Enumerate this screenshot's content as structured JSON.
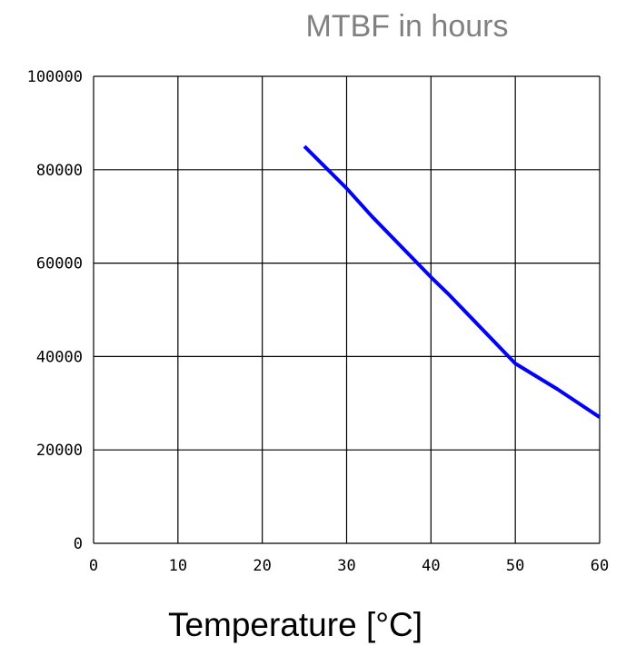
{
  "chart_data": {
    "type": "line",
    "title": "MTBF in hours",
    "xlabel": "Temperature [°C]",
    "ylabel": "",
    "xlim": [
      0,
      60
    ],
    "ylim": [
      0,
      100000
    ],
    "x_ticks": [
      "0",
      "10",
      "20",
      "30",
      "40",
      "50",
      "60"
    ],
    "y_ticks": [
      "0",
      "20000",
      "40000",
      "60000",
      "80000",
      "100000"
    ],
    "grid": true,
    "legend": "none",
    "series": [
      {
        "color": "#0000ff",
        "x": [
          25,
          30,
          33,
          40,
          42,
          50,
          55,
          60
        ],
        "y": [
          85000,
          76000,
          70000,
          57000,
          53500,
          38500,
          33000,
          27000
        ]
      }
    ]
  }
}
